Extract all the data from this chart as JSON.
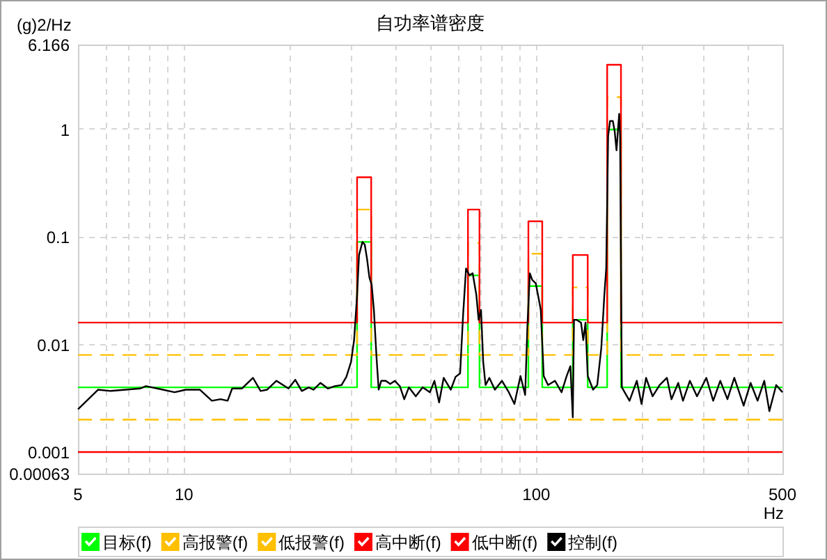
{
  "chart_data": {
    "type": "line",
    "title": "自功率谱密度",
    "ylabel": "(g)2/Hz",
    "xlabel": "Hz",
    "log": "xy",
    "grid": true,
    "legend": "bottom",
    "xlim": [
      5,
      500
    ],
    "ylim": [
      0.00063,
      6.166
    ],
    "xticks": [
      5,
      {
        "value": 6,
        "label": null
      },
      {
        "value": 7,
        "label": null
      },
      {
        "value": 8,
        "label": null
      },
      {
        "value": 9,
        "label": null
      },
      10,
      {
        "value": 20,
        "label": null
      },
      {
        "value": 30,
        "label": null
      },
      {
        "value": 40,
        "label": null
      },
      {
        "value": 50,
        "label": null
      },
      {
        "value": 60,
        "label": null
      },
      {
        "value": 70,
        "label": null
      },
      {
        "value": 80,
        "label": null
      },
      {
        "value": 90,
        "label": null
      },
      100,
      {
        "value": 200,
        "label": null
      },
      {
        "value": 300,
        "label": null
      },
      {
        "value": 400,
        "label": null
      },
      500
    ],
    "yticks": [
      0.00063,
      0.001,
      0.01,
      0.1,
      1,
      6.166
    ],
    "series": [
      {
        "name": "目标(f)",
        "color": "#00ff00",
        "line_style": "solid",
        "x": [
          5,
          31,
          31,
          34,
          34,
          64,
          64,
          69,
          69,
          95,
          95,
          104,
          104,
          127,
          127,
          140,
          140,
          159,
          159,
          174,
          174,
          500
        ],
        "values": [
          0.004,
          0.004,
          0.09,
          0.09,
          0.004,
          0.004,
          0.044,
          0.044,
          0.004,
          0.004,
          0.035,
          0.035,
          0.004,
          0.004,
          0.017,
          0.017,
          0.004,
          0.004,
          1,
          1,
          0.004,
          0.004
        ]
      },
      {
        "name": "高报警(f)",
        "color": "#ffc000",
        "line_style": "dashed",
        "x": [
          5,
          31,
          31,
          34,
          34,
          64,
          64,
          69,
          69,
          95,
          95,
          104,
          104,
          127,
          127,
          140,
          140,
          159,
          159,
          174,
          174,
          500
        ],
        "values": [
          0.008,
          0.008,
          0.18,
          0.18,
          0.008,
          0.008,
          0.088,
          0.088,
          0.008,
          0.008,
          0.07,
          0.07,
          0.008,
          0.008,
          0.034,
          0.034,
          0.008,
          0.008,
          2,
          2,
          0.008,
          0.008
        ]
      },
      {
        "name": "低报警(f)",
        "color": "#ffc000",
        "line_style": "dashed",
        "x": [
          5,
          500
        ],
        "values": [
          0.002,
          0.002
        ]
      },
      {
        "name": "高中断(f)",
        "color": "#ff0000",
        "line_style": "solid",
        "x": [
          5,
          31,
          31,
          34,
          34,
          64,
          64,
          69,
          69,
          95,
          95,
          104,
          104,
          127,
          127,
          140,
          140,
          159,
          159,
          174,
          174,
          500
        ],
        "values": [
          0.016,
          0.016,
          0.36,
          0.36,
          0.016,
          0.016,
          0.18,
          0.18,
          0.016,
          0.016,
          0.14,
          0.14,
          0.016,
          0.016,
          0.068,
          0.068,
          0.016,
          0.016,
          4,
          4,
          0.016,
          0.016
        ]
      },
      {
        "name": "低中断(f)",
        "color": "#ff0000",
        "line_style": "solid",
        "x": [
          5,
          500
        ],
        "values": [
          0.001,
          0.001
        ]
      },
      {
        "name": "控制(f)",
        "color": "#000000",
        "line_style": "solid",
        "x": [
          5,
          5.7,
          6.2,
          7.5,
          7.8,
          8.4,
          9.4,
          10.1,
          11.1,
          12,
          12.7,
          13.3,
          13.7,
          14.6,
          15.7,
          16.5,
          17.2,
          18.3,
          19.8,
          20.7,
          21.6,
          22.6,
          23.3,
          24.4,
          25.6,
          26.8,
          28,
          28.9,
          29.8,
          30.4,
          31,
          31.4,
          32.1,
          32.6,
          33.1,
          33.6,
          34.1,
          34.6,
          35.2,
          35.7,
          36.3,
          37.4,
          38.5,
          39.7,
          41,
          42.2,
          43.5,
          45.5,
          47.6,
          49.9,
          51.4,
          53,
          54.6,
          57.2,
          59,
          60.8,
          62,
          63.2,
          64.6,
          66,
          67.6,
          68.6,
          69.7,
          70.7,
          71.8,
          73.6,
          76.3,
          79.9,
          83.6,
          86.7,
          90.2,
          93,
          94.4,
          95.9,
          97.4,
          99.7,
          102,
          103,
          105,
          108,
          113,
          118,
          122,
          125,
          127,
          128,
          130,
          134,
          136,
          138,
          140,
          145,
          149,
          153,
          156,
          158,
          160,
          162,
          165,
          167,
          169,
          171,
          172,
          173,
          175,
          184,
          193,
          199,
          205,
          214,
          224,
          235,
          242,
          253,
          261,
          273,
          286,
          304,
          318,
          333,
          349,
          365,
          388,
          406,
          425,
          444,
          459,
          480,
          500
        ],
        "values": [
          0.0025,
          0.0038,
          0.0037,
          0.0039,
          0.0041,
          0.0039,
          0.0036,
          0.0038,
          0.0038,
          0.003,
          0.0031,
          0.003,
          0.0039,
          0.0039,
          0.0049,
          0.0037,
          0.0038,
          0.0046,
          0.0039,
          0.0047,
          0.0037,
          0.004,
          0.0038,
          0.0044,
          0.0039,
          0.0041,
          0.0042,
          0.005,
          0.0069,
          0.011,
          0.029,
          0.068,
          0.09,
          0.085,
          0.062,
          0.042,
          0.036,
          0.021,
          0.0076,
          0.0038,
          0.0046,
          0.0046,
          0.0043,
          0.0046,
          0.0041,
          0.0031,
          0.004,
          0.0033,
          0.004,
          0.0036,
          0.0046,
          0.0029,
          0.0049,
          0.0038,
          0.005,
          0.0054,
          0.019,
          0.051,
          0.044,
          0.046,
          0.029,
          0.017,
          0.021,
          0.0069,
          0.0042,
          0.0049,
          0.0038,
          0.0046,
          0.0036,
          0.0028,
          0.0051,
          0.0034,
          0.015,
          0.046,
          0.04,
          0.037,
          0.025,
          0.021,
          0.0051,
          0.0042,
          0.0046,
          0.0036,
          0.0051,
          0.0063,
          0.0021,
          0.017,
          0.017,
          0.016,
          0.011,
          0.016,
          0.0051,
          0.0038,
          0.0042,
          0.0093,
          0.028,
          0.051,
          0.87,
          1.2,
          1.2,
          0.96,
          0.64,
          1.1,
          1.4,
          0.87,
          0.004,
          0.003,
          0.0046,
          0.0028,
          0.0049,
          0.0033,
          0.0042,
          0.0049,
          0.0031,
          0.0044,
          0.003,
          0.0046,
          0.0033,
          0.0049,
          0.003,
          0.0046,
          0.0031,
          0.0049,
          0.0027,
          0.0044,
          0.003,
          0.0046,
          0.0024,
          0.0042,
          0.0036
        ]
      }
    ]
  }
}
